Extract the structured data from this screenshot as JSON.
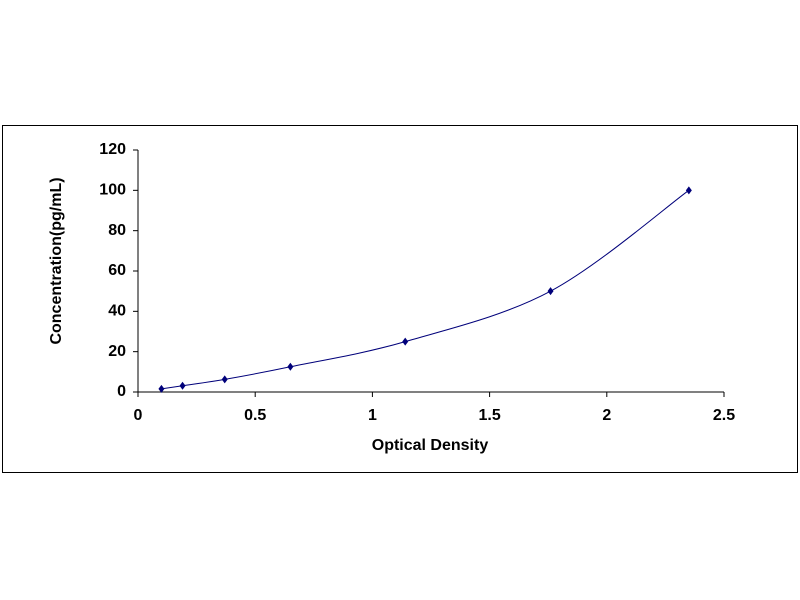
{
  "chart_data": {
    "type": "scatter",
    "line": true,
    "x_label": "Optical Density",
    "y_label": "Concentration(pg/mL)",
    "series": [
      {
        "color": "#00007a",
        "x": [
          0.1,
          0.19,
          0.37,
          0.65,
          1.14,
          1.76,
          2.35
        ],
        "values": [
          1.56,
          3.12,
          6.25,
          12.5,
          25,
          50,
          100
        ]
      }
    ],
    "xlim": [
      0,
      2.5
    ],
    "xticks": [
      0,
      0.5,
      1,
      1.5,
      2,
      2.5
    ],
    "ylim": [
      0,
      120
    ],
    "yticks": [
      0,
      20,
      40,
      60,
      80,
      100,
      120
    ],
    "grid": false
  }
}
